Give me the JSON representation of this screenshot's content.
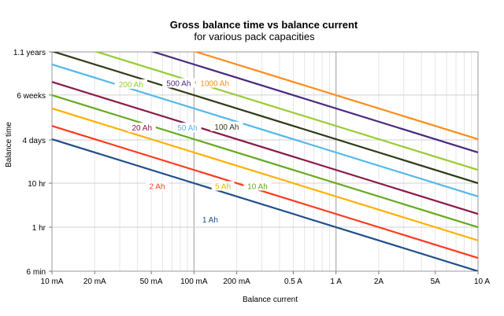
{
  "chart_data": {
    "type": "line",
    "title": "Gross balance time vs balance current",
    "subtitle": "for various pack capacities",
    "xlabel": "Balance current",
    "ylabel": "Balance time",
    "x_scale": "log",
    "y_scale": "log",
    "x_unit": "A",
    "y_unit": "hours",
    "xlim": [
      0.01,
      10
    ],
    "ylim": [
      0.1,
      9636
    ],
    "grid": true,
    "x_ticks": [
      {
        "value": 0.01,
        "label": "10 mA"
      },
      {
        "value": 0.02,
        "label": "20 mA"
      },
      {
        "value": 0.05,
        "label": "50 mA"
      },
      {
        "value": 0.1,
        "label": "100 mA"
      },
      {
        "value": 0.2,
        "label": "200 mA"
      },
      {
        "value": 0.5,
        "label": "0.5 A"
      },
      {
        "value": 1,
        "label": "1 A"
      },
      {
        "value": 2,
        "label": "2A"
      },
      {
        "value": 5,
        "label": "5A"
      },
      {
        "value": 10,
        "label": "10 A"
      }
    ],
    "y_ticks": [
      {
        "value": 0.1,
        "label": "6 min"
      },
      {
        "value": 1,
        "label": "1 hr"
      },
      {
        "value": 10,
        "label": "10 hr"
      },
      {
        "value": 96,
        "label": "4 days"
      },
      {
        "value": 1008,
        "label": "6 weeks"
      },
      {
        "value": 9636,
        "label": "1.1 years"
      }
    ],
    "series": [
      {
        "name": "1 Ah",
        "capacity": 1,
        "color": "#1f4e8c",
        "x": [
          0.01,
          10
        ],
        "y": [
          100,
          0.1
        ],
        "label_x": 0.13,
        "label_y": 1.4
      },
      {
        "name": "2 Ah",
        "capacity": 2,
        "color": "#ff3b1f",
        "x": [
          0.01,
          10
        ],
        "y": [
          200,
          0.2
        ],
        "label_x": 0.055,
        "label_y": 8
      },
      {
        "name": "5 Ah",
        "capacity": 5,
        "color": "#ffb000",
        "x": [
          0.01,
          10
        ],
        "y": [
          500,
          0.5
        ],
        "label_x": 0.16,
        "label_y": 8
      },
      {
        "name": "10 Ah",
        "capacity": 10,
        "color": "#66aa22",
        "x": [
          0.01,
          10
        ],
        "y": [
          1000,
          1
        ],
        "label_x": 0.28,
        "label_y": 8
      },
      {
        "name": "20 Ah",
        "capacity": 20,
        "color": "#8b1a46",
        "x": [
          0.01,
          10
        ],
        "y": [
          2000,
          2
        ],
        "label_x": 0.043,
        "label_y": 170
      },
      {
        "name": "50 Ah",
        "capacity": 50,
        "color": "#55b8ec",
        "x": [
          0.01,
          10
        ],
        "y": [
          5000,
          5
        ],
        "label_x": 0.09,
        "label_y": 170
      },
      {
        "name": "100 Ah",
        "capacity": 100,
        "color": "#2f3a16",
        "x": [
          0.01,
          10
        ],
        "y": [
          10000,
          10
        ],
        "label_x": 0.17,
        "label_y": 180
      },
      {
        "name": "200 Ah",
        "capacity": 200,
        "color": "#99cc33",
        "x": [
          0.01,
          10
        ],
        "y": [
          20000,
          20
        ],
        "label_x": 0.036,
        "label_y": 1650
      },
      {
        "name": "500 Ah",
        "capacity": 500,
        "color": "#4b2a80",
        "x": [
          0.01,
          10
        ],
        "y": [
          50000,
          50
        ],
        "label_x": 0.078,
        "label_y": 1750
      },
      {
        "name": "1000 Ah",
        "capacity": 1000,
        "color": "#ff8c1a",
        "x": [
          0.01,
          10
        ],
        "y": [
          100000,
          100
        ],
        "label_x": 0.14,
        "label_y": 1750
      }
    ]
  }
}
